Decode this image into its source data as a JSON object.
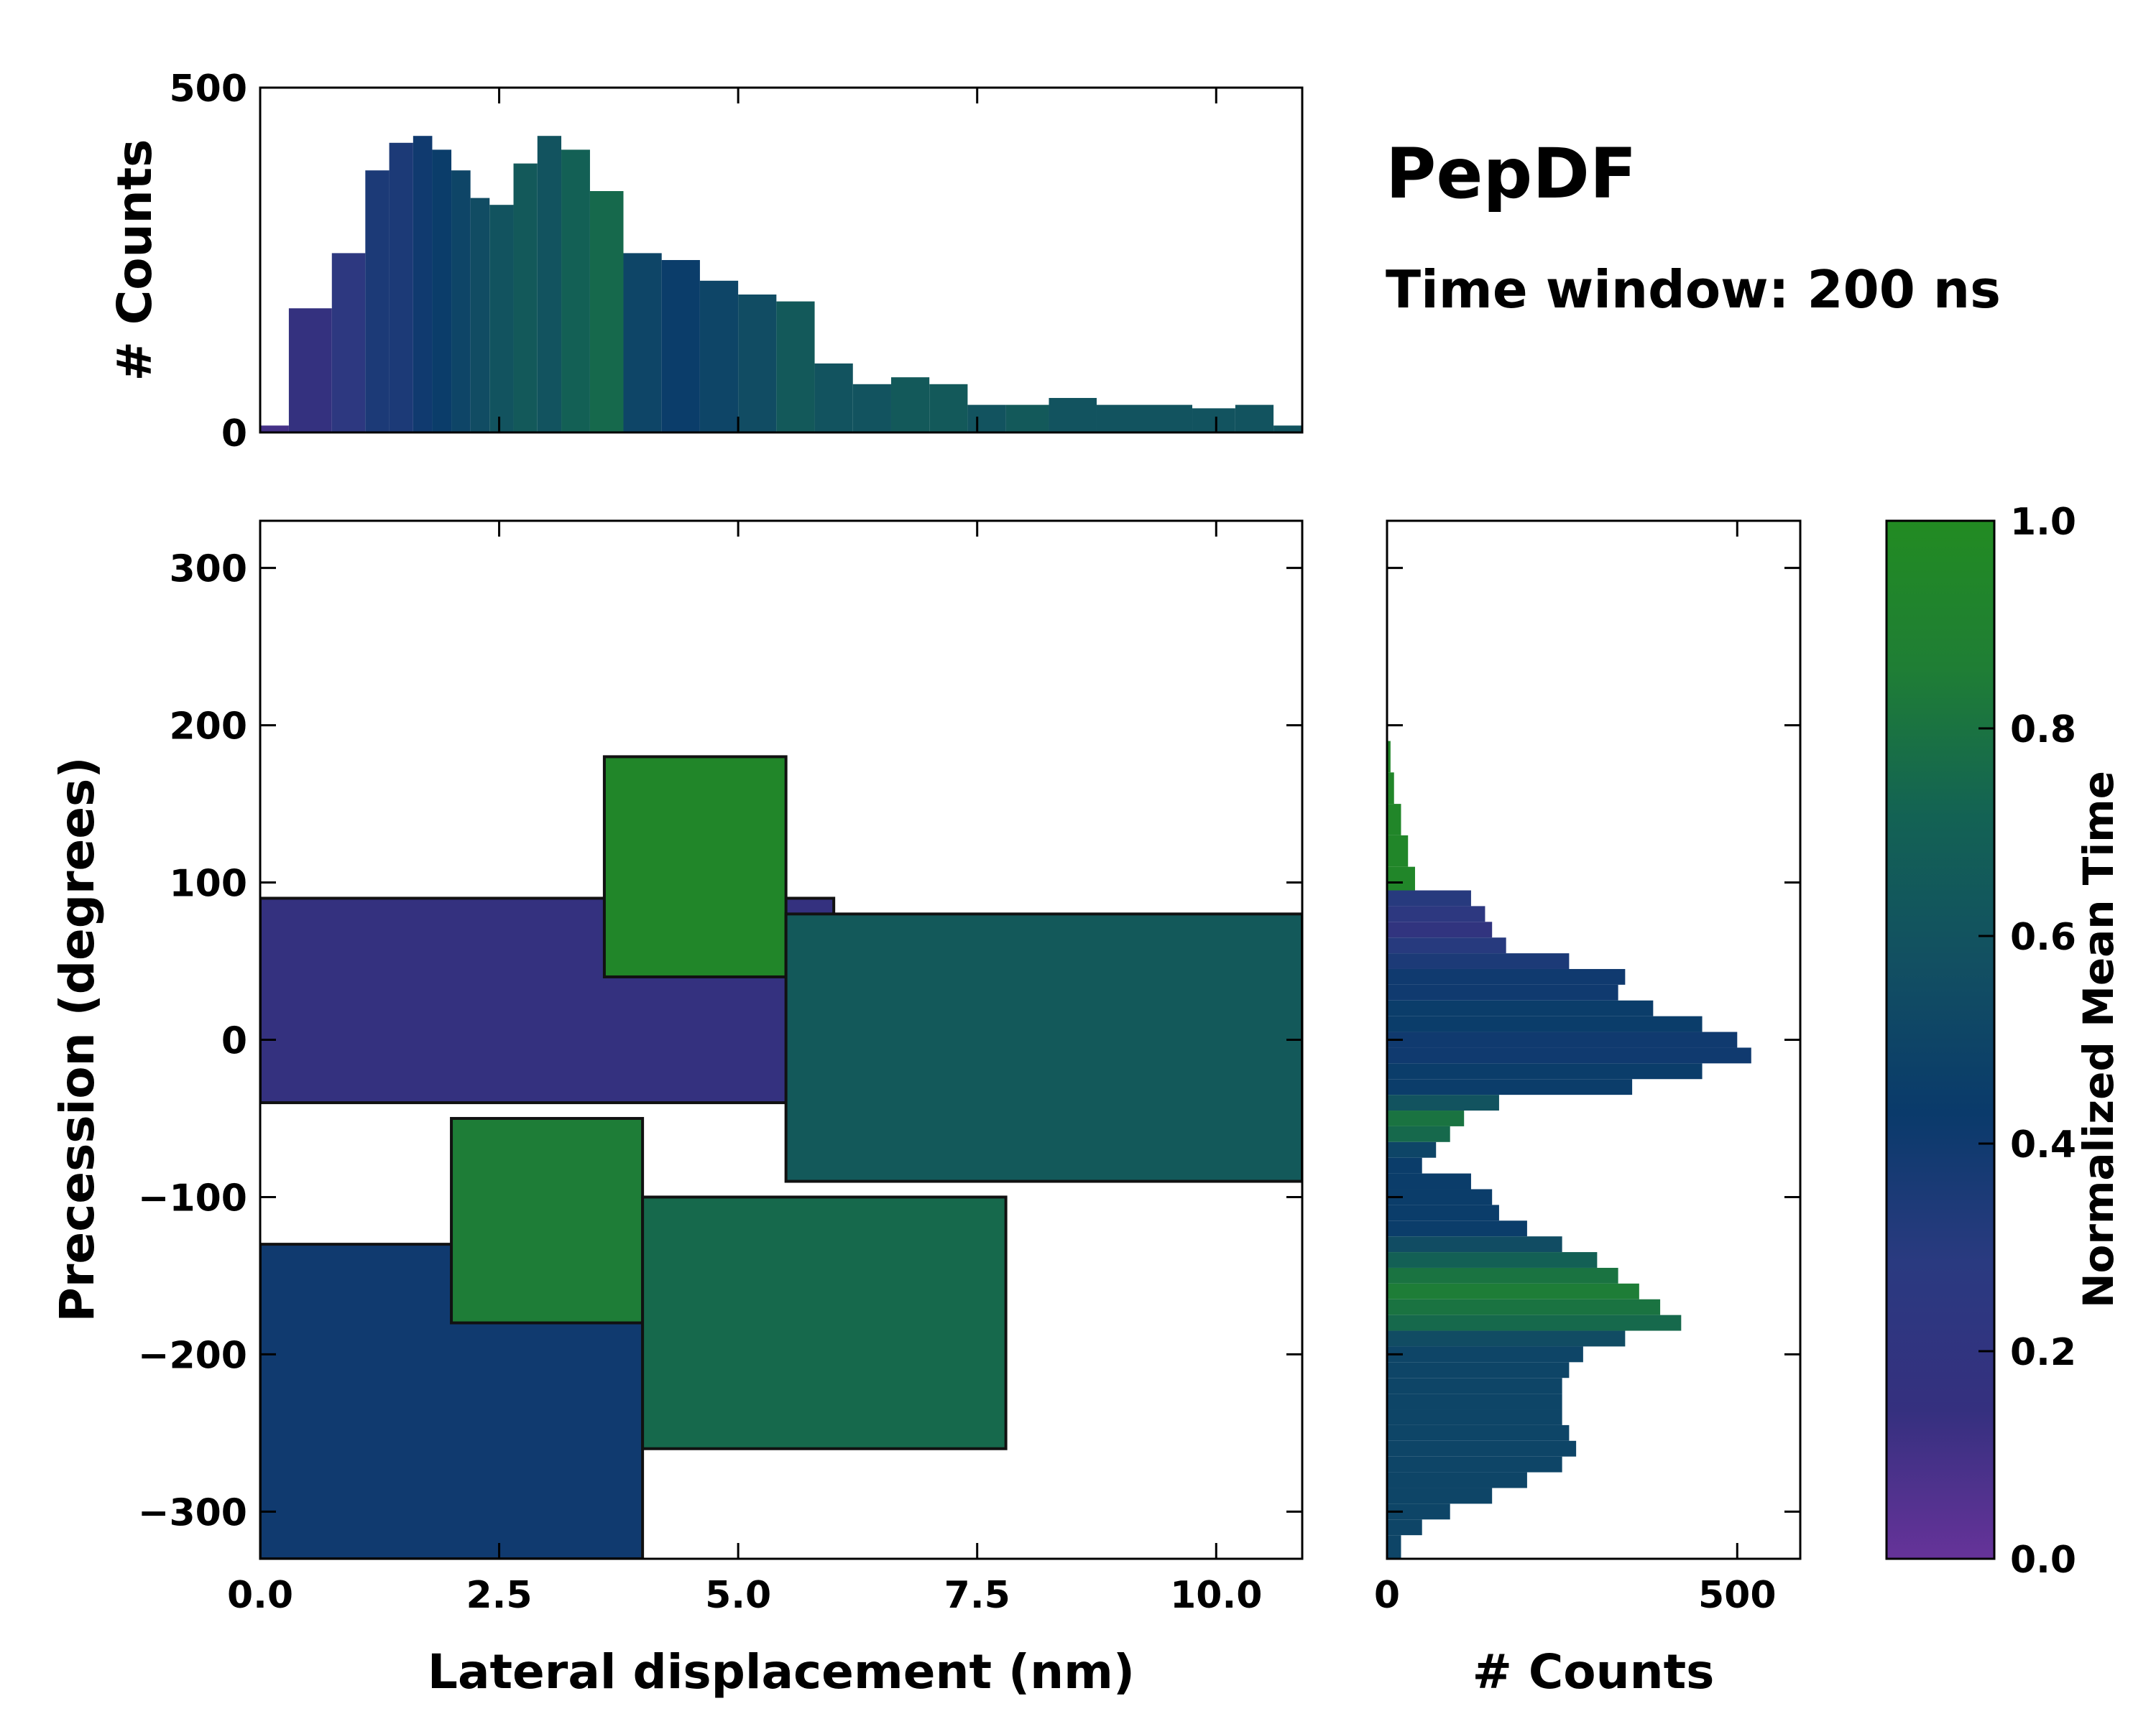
{
  "figure": {
    "title": "PepDF",
    "subtitle": "Time window: 200 ns"
  },
  "chart_data": [
    {
      "type": "heatmap",
      "name": "joint",
      "xlabel": "Lateral displacement (nm)",
      "ylabel": "Precession (degrees)",
      "xlim": [
        0,
        10.9
      ],
      "ylim": [
        -330,
        330
      ],
      "xticks": [
        "0.0",
        "2.5",
        "5.0",
        "7.5",
        "10.0"
      ],
      "xtick_values": [
        0,
        2.5,
        5,
        7.5,
        10
      ],
      "yticks": [
        "300",
        "200",
        "100",
        "0",
        "−100",
        "−200",
        "−300"
      ],
      "ytick_values": [
        300,
        200,
        100,
        0,
        -100,
        -200,
        -300
      ],
      "color_meaning": "Normalized Mean Time",
      "regions": [
        {
          "label": "violet lobe",
          "x": [
            0.0,
            6.0
          ],
          "y": [
            -40,
            90
          ],
          "mean_time": 0.15
        },
        {
          "label": "green upper lobe",
          "x": [
            3.6,
            5.5
          ],
          "y": [
            40,
            180
          ],
          "mean_time": 0.95
        },
        {
          "label": "teal arm",
          "x": [
            5.5,
            10.9
          ],
          "y": [
            -90,
            80
          ],
          "mean_time": 0.65
        },
        {
          "label": "lower-left navy cluster",
          "x": [
            0.0,
            4.0
          ],
          "y": [
            -330,
            -130
          ],
          "mean_time": 0.4
        },
        {
          "label": "green middle band",
          "x": [
            2.0,
            4.0
          ],
          "y": [
            -180,
            -50
          ],
          "mean_time": 0.85
        },
        {
          "label": "lower green arm",
          "x": [
            4.0,
            7.8
          ],
          "y": [
            -260,
            -100
          ],
          "mean_time": 0.75
        }
      ]
    },
    {
      "type": "bar",
      "name": "top_marginal",
      "ylabel": "# Counts",
      "ylim": [
        0,
        500
      ],
      "yticks": [
        "500",
        "0"
      ],
      "ytick_values": [
        500,
        0
      ],
      "x": [
        0.1,
        0.5,
        1.0,
        1.2,
        1.5,
        1.7,
        1.9,
        2.1,
        2.3,
        2.5,
        2.8,
        3.0,
        3.3,
        3.6,
        4.0,
        4.4,
        4.8,
        5.2,
        5.6,
        6.0,
        6.4,
        6.8,
        7.2,
        7.6,
        8.0,
        8.5,
        9.0,
        9.5,
        10.0,
        10.4,
        10.8
      ],
      "values": [
        10,
        180,
        260,
        380,
        420,
        430,
        410,
        380,
        340,
        330,
        390,
        430,
        410,
        350,
        260,
        250,
        220,
        200,
        190,
        100,
        70,
        80,
        70,
        40,
        40,
        50,
        40,
        40,
        35,
        40,
        10
      ],
      "mean_time": [
        0.1,
        0.15,
        0.25,
        0.35,
        0.35,
        0.4,
        0.45,
        0.5,
        0.55,
        0.6,
        0.65,
        0.6,
        0.7,
        0.75,
        0.5,
        0.45,
        0.5,
        0.55,
        0.65,
        0.6,
        0.6,
        0.65,
        0.65,
        0.6,
        0.65,
        0.6,
        0.6,
        0.6,
        0.6,
        0.6,
        0.6
      ]
    },
    {
      "type": "bar",
      "name": "right_marginal",
      "orientation": "horizontal",
      "xlabel": "# Counts",
      "xlim": [
        0,
        590
      ],
      "xticks": [
        "0",
        "500"
      ],
      "xtick_values": [
        0,
        500
      ],
      "y": [
        180,
        160,
        140,
        120,
        100,
        90,
        80,
        70,
        60,
        50,
        40,
        30,
        20,
        10,
        0,
        -10,
        -20,
        -30,
        -40,
        -50,
        -60,
        -70,
        -80,
        -90,
        -100,
        -110,
        -120,
        -130,
        -140,
        -150,
        -160,
        -170,
        -180,
        -190,
        -200,
        -210,
        -220,
        -230,
        -240,
        -250,
        -260,
        -270,
        -280,
        -290,
        -300,
        -310,
        -320
      ],
      "values": [
        5,
        10,
        20,
        30,
        40,
        120,
        140,
        150,
        170,
        260,
        340,
        330,
        380,
        450,
        500,
        520,
        450,
        350,
        160,
        110,
        90,
        70,
        50,
        120,
        150,
        160,
        200,
        250,
        300,
        330,
        360,
        390,
        420,
        340,
        280,
        260,
        250,
        250,
        250,
        260,
        270,
        250,
        200,
        150,
        90,
        50,
        20
      ],
      "mean_time": [
        0.95,
        0.95,
        0.95,
        0.95,
        0.95,
        0.3,
        0.25,
        0.2,
        0.3,
        0.35,
        0.4,
        0.4,
        0.45,
        0.45,
        0.4,
        0.4,
        0.45,
        0.45,
        0.6,
        0.8,
        0.75,
        0.5,
        0.45,
        0.45,
        0.45,
        0.45,
        0.45,
        0.55,
        0.7,
        0.8,
        0.85,
        0.8,
        0.75,
        0.55,
        0.5,
        0.5,
        0.5,
        0.5,
        0.5,
        0.5,
        0.5,
        0.5,
        0.5,
        0.5,
        0.5,
        0.5,
        0.5
      ]
    },
    {
      "type": "colorbar",
      "name": "colorbar",
      "label": "Normalized Mean Time",
      "range": [
        0,
        1
      ],
      "ticks": [
        "1.0",
        "0.8",
        "0.6",
        "0.4",
        "0.2",
        "0.0"
      ],
      "tick_values": [
        1.0,
        0.8,
        0.6,
        0.4,
        0.2,
        0.0
      ],
      "colors": [
        "#663399",
        "#35307f",
        "#2a3a80",
        "#0a3a6b",
        "#124f62",
        "#136254",
        "#1f7e35",
        "#228b22"
      ]
    }
  ]
}
